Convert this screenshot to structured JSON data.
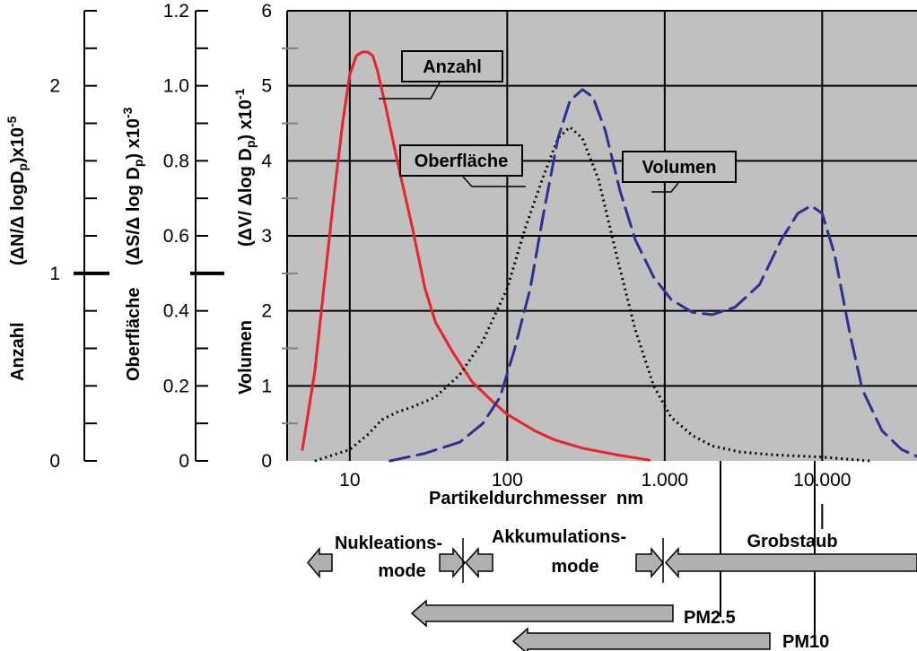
{
  "chart_data": {
    "type": "line",
    "xlabel": "Partikeldurchmesser  nm",
    "x_scale": "log",
    "xlim": [
      4,
      40000
    ],
    "x_ticks": [
      {
        "value": 10,
        "label": "10"
      },
      {
        "value": 100,
        "label": "100"
      },
      {
        "value": 1000,
        "label": "1.000"
      },
      {
        "value": 10000,
        "label": "10.000"
      }
    ],
    "y_axes": [
      {
        "id": "volumen",
        "label": "(ΔV/ Δlog Dp) x10-1",
        "title": "Volumen",
        "range": [
          0,
          6
        ],
        "ticks": [
          "0",
          "1",
          "2",
          "3",
          "4",
          "5",
          "6"
        ]
      },
      {
        "id": "oberflaeche",
        "label": "(ΔS/Δ log Dp) x10-3",
        "title": "Oberfläche",
        "range": [
          0,
          1.2
        ],
        "ticks": [
          "0",
          "0.2",
          "0.4",
          "0.6",
          "0.8",
          "1.0",
          "1.2"
        ]
      },
      {
        "id": "anzahl",
        "label": "(ΔN/Δ logDp)x10-5",
        "title": "Anzahl",
        "range": [
          0,
          2.4
        ],
        "ticks": [
          "0",
          "1",
          "2"
        ]
      }
    ],
    "grid": true,
    "series": [
      {
        "name": "Anzahl",
        "color": "#e8232a",
        "style": "solid",
        "points": [
          [
            5,
            0.15
          ],
          [
            6,
            1.2
          ],
          [
            7,
            2.5
          ],
          [
            8,
            3.6
          ],
          [
            9,
            4.5
          ],
          [
            10,
            5.15
          ],
          [
            11,
            5.4
          ],
          [
            12,
            5.45
          ],
          [
            13,
            5.45
          ],
          [
            14,
            5.4
          ],
          [
            15,
            5.2
          ],
          [
            17,
            4.7
          ],
          [
            20,
            4.0
          ],
          [
            25,
            3.1
          ],
          [
            30,
            2.3
          ],
          [
            35,
            1.85
          ],
          [
            45,
            1.45
          ],
          [
            60,
            1.05
          ],
          [
            80,
            0.8
          ],
          [
            100,
            0.62
          ],
          [
            150,
            0.4
          ],
          [
            200,
            0.28
          ],
          [
            300,
            0.17
          ],
          [
            500,
            0.08
          ],
          [
            700,
            0.03
          ],
          [
            800,
            0.01
          ]
        ]
      },
      {
        "name": "Oberfläche",
        "color": "#000000",
        "style": "dotted",
        "points": [
          [
            6,
            0.0
          ],
          [
            10,
            0.15
          ],
          [
            13,
            0.35
          ],
          [
            16,
            0.55
          ],
          [
            20,
            0.65
          ],
          [
            25,
            0.72
          ],
          [
            35,
            0.85
          ],
          [
            50,
            1.15
          ],
          [
            70,
            1.6
          ],
          [
            100,
            2.3
          ],
          [
            130,
            3.1
          ],
          [
            170,
            3.8
          ],
          [
            210,
            4.3
          ],
          [
            250,
            4.45
          ],
          [
            300,
            4.3
          ],
          [
            380,
            3.75
          ],
          [
            500,
            2.7
          ],
          [
            650,
            1.75
          ],
          [
            850,
            1.0
          ],
          [
            1100,
            0.58
          ],
          [
            1500,
            0.34
          ],
          [
            2000,
            0.2
          ],
          [
            3000,
            0.12
          ],
          [
            5000,
            0.08
          ],
          [
            10000,
            0.05
          ],
          [
            20000,
            0.0
          ]
        ]
      },
      {
        "name": "Volumen",
        "color": "#2e3192",
        "style": "dashed",
        "points": [
          [
            18,
            0.0
          ],
          [
            30,
            0.1
          ],
          [
            50,
            0.25
          ],
          [
            70,
            0.5
          ],
          [
            90,
            0.85
          ],
          [
            110,
            1.45
          ],
          [
            140,
            2.3
          ],
          [
            170,
            3.3
          ],
          [
            210,
            4.3
          ],
          [
            250,
            4.8
          ],
          [
            300,
            4.95
          ],
          [
            350,
            4.85
          ],
          [
            420,
            4.4
          ],
          [
            520,
            3.6
          ],
          [
            650,
            2.95
          ],
          [
            850,
            2.45
          ],
          [
            1100,
            2.15
          ],
          [
            1500,
            1.98
          ],
          [
            2000,
            1.95
          ],
          [
            2800,
            2.05
          ],
          [
            4000,
            2.35
          ],
          [
            5500,
            2.95
          ],
          [
            7000,
            3.3
          ],
          [
            8500,
            3.4
          ],
          [
            10000,
            3.3
          ],
          [
            12000,
            2.75
          ],
          [
            15000,
            1.7
          ],
          [
            18000,
            0.95
          ],
          [
            24000,
            0.4
          ],
          [
            32000,
            0.15
          ],
          [
            40000,
            0.06
          ]
        ]
      }
    ],
    "annotations": [
      {
        "text": "Anzahl"
      },
      {
        "text": "Oberfläche"
      },
      {
        "text": "Volumen"
      }
    ]
  },
  "modes": {
    "nukleation_line1": "Nukleations-",
    "nukleation_line2": "mode",
    "akkumulation_line1": "Akkumulations-",
    "akkumulation_line2": "mode",
    "grobstaub": "Grobstaub",
    "pm25": "PM2.5",
    "pm10": "PM10"
  },
  "colors": {
    "plot_bg": "#c0c0c0",
    "arrow_fill": "#b0b0b0"
  }
}
